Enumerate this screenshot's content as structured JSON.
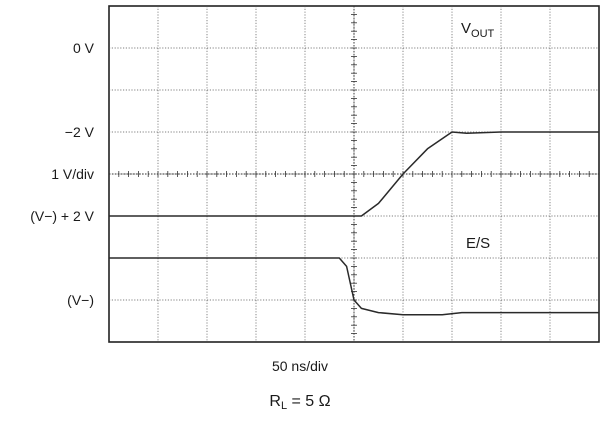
{
  "chart_data": {
    "type": "line",
    "y_axis": {
      "labels": [
        "0 V",
        "−2 V",
        "1 V/div",
        "(V−) + 2 V",
        "(V−)"
      ],
      "divisions": 8
    },
    "x_axis": {
      "label": "50 ns/div",
      "divisions": 10
    },
    "grid": true,
    "series": [
      {
        "name": "V",
        "name_sub": "OUT",
        "points": [
          [
            0,
            3
          ],
          [
            5.15,
            3
          ],
          [
            5.5,
            3.3
          ],
          [
            6.0,
            4.0
          ],
          [
            6.5,
            4.6
          ],
          [
            7.0,
            5.0
          ],
          [
            7.3,
            4.97
          ],
          [
            8,
            5.0
          ],
          [
            10,
            5.0
          ]
        ]
      },
      {
        "name": "E/S",
        "points": [
          [
            0,
            2.0
          ],
          [
            4.7,
            2.0
          ],
          [
            4.85,
            1.8
          ],
          [
            5.0,
            1.0
          ],
          [
            5.15,
            0.8
          ],
          [
            5.5,
            0.7
          ],
          [
            6.0,
            0.65
          ],
          [
            6.8,
            0.65
          ],
          [
            7.2,
            0.7
          ],
          [
            8,
            0.7
          ],
          [
            10,
            0.7
          ]
        ]
      }
    ]
  },
  "caption": {
    "base": "R",
    "sub": "L",
    "rest": " = 5 Ω"
  }
}
